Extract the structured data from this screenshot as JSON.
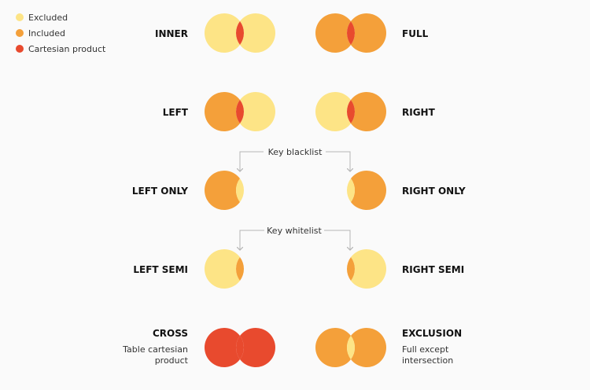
{
  "colors": {
    "excluded": "#fde486",
    "included": "#f4a03a",
    "cartesian": "#e84a2e",
    "bracket": "#b5b5b5"
  },
  "legend": [
    {
      "key": "excluded",
      "label": "Excluded"
    },
    {
      "key": "included",
      "label": "Included"
    },
    {
      "key": "cartesian",
      "label": "Cartesian product"
    }
  ],
  "joins": {
    "inner": {
      "label": "INNER",
      "left": "excluded",
      "right": "excluded",
      "overlap": "cartesian"
    },
    "full": {
      "label": "FULL",
      "left": "included",
      "right": "included",
      "overlap": "cartesian"
    },
    "left": {
      "label": "LEFT",
      "left": "included",
      "right": "excluded",
      "overlap": "cartesian"
    },
    "right": {
      "label": "RIGHT",
      "left": "excluded",
      "right": "included",
      "overlap": "cartesian"
    },
    "left_only": {
      "label": "LEFT ONLY",
      "left": "included",
      "right": "none",
      "overlap": "excluded"
    },
    "right_only": {
      "label": "RIGHT ONLY",
      "left": "none",
      "right": "included",
      "overlap": "excluded"
    },
    "left_semi": {
      "label": "LEFT SEMI",
      "left": "excluded",
      "right": "none",
      "overlap": "included"
    },
    "right_semi": {
      "label": "RIGHT SEMI",
      "left": "none",
      "right": "excluded",
      "overlap": "included"
    },
    "cross": {
      "label": "CROSS",
      "sublabel": [
        "Table cartesian",
        "product"
      ],
      "left": "cartesian",
      "right": "cartesian",
      "overlap": "cartesian"
    },
    "exclusion": {
      "label": "EXCLUSION",
      "sublabel": [
        "Full except",
        "intersection"
      ],
      "left": "included",
      "right": "included",
      "overlap": "excluded"
    }
  },
  "brackets": {
    "blacklist": "Key blacklist",
    "whitelist": "Key whitelist"
  }
}
